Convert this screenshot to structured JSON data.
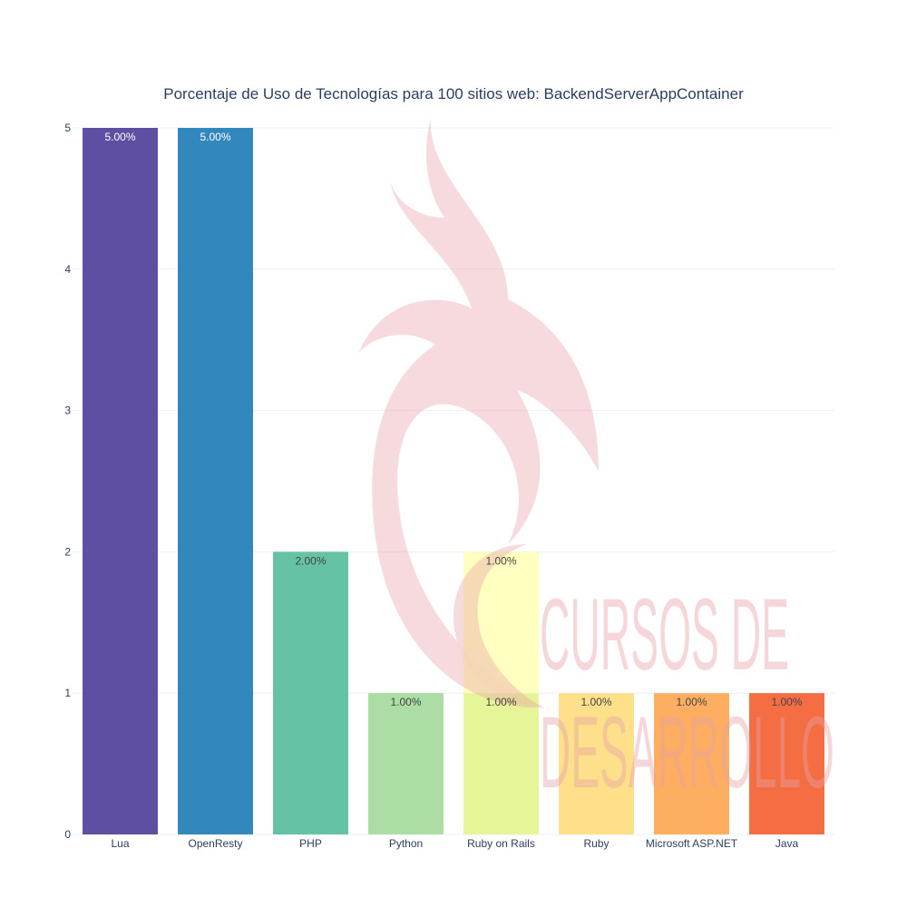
{
  "chart_data": {
    "type": "bar",
    "title": "Porcentaje de Uso de Tecnologías para 100 sitios web: BackendServerAppContainer",
    "xlabel": "",
    "ylabel": "",
    "ylim": [
      0,
      5
    ],
    "yticks": [
      "0",
      "1",
      "2",
      "3",
      "4",
      "5"
    ],
    "grid": true,
    "categories": [
      "Lua",
      "OpenResty",
      "PHP",
      "Python",
      "Ruby on Rails",
      "Ruby",
      "Microsoft ASP.NET",
      "Java"
    ],
    "bars": [
      {
        "category": "Lua",
        "base": 0,
        "value": 5,
        "label": "5.00%",
        "color": "#5e4fa2"
      },
      {
        "category": "OpenResty",
        "base": 0,
        "value": 5,
        "label": "5.00%",
        "color": "#3288bd"
      },
      {
        "category": "PHP",
        "base": 0,
        "value": 2,
        "label": "2.00%",
        "color": "#66c2a5"
      },
      {
        "category": "Python",
        "base": 0,
        "value": 1,
        "label": "1.00%",
        "color": "#abdda4"
      },
      {
        "category": "Ruby on Rails",
        "base": 0,
        "value": 1,
        "label": "1.00%",
        "color": "#e6f598"
      },
      {
        "category": "Ruby on Rails",
        "base": 1,
        "value": 1,
        "label": "1.00%",
        "color": "#ffffbf"
      },
      {
        "category": "Ruby",
        "base": 0,
        "value": 1,
        "label": "1.00%",
        "color": "#fee08b"
      },
      {
        "category": "Microsoft ASP.NET",
        "base": 0,
        "value": 1,
        "label": "1.00%",
        "color": "#fdae61"
      },
      {
        "category": "Java",
        "base": 0,
        "value": 1,
        "label": "1.00%",
        "color": "#f46d43"
      }
    ],
    "watermark": {
      "text_line1": "CURSOS DE",
      "text_line2": "DESARROLLO",
      "color": "#e8a0a8"
    }
  }
}
